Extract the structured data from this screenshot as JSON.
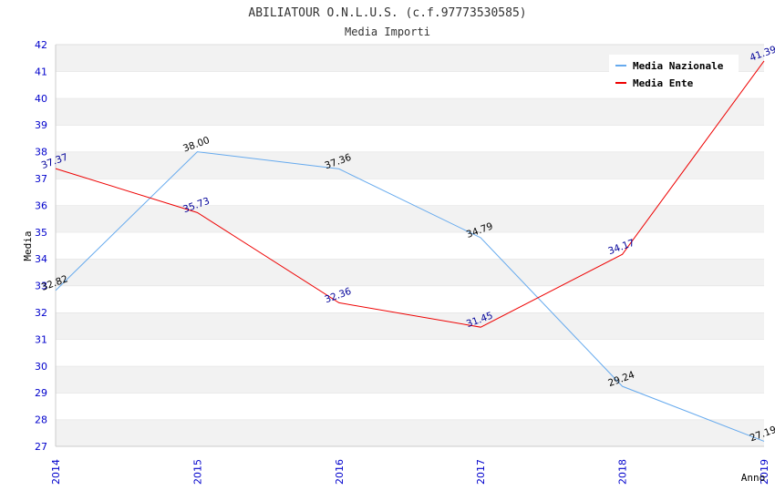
{
  "chart_data": {
    "type": "line",
    "title": "ABILIATOUR O.N.L.U.S. (c.f.97773530585)",
    "subtitle": "Media Importi",
    "xlabel": "Anno",
    "ylabel": "Media",
    "ylim": [
      27,
      42
    ],
    "yticks": [
      "27",
      "28",
      "29",
      "30",
      "31",
      "32",
      "33",
      "34",
      "35",
      "36",
      "37",
      "38",
      "39",
      "40",
      "41",
      "42"
    ],
    "categories": [
      "2014",
      "2015",
      "2016",
      "2017",
      "2018",
      "2019"
    ],
    "grid": "horizontal alternating bands",
    "legend_position": "top-right",
    "series": [
      {
        "name": "Media Nazionale",
        "color": "#66aaee",
        "label_color": "#000000",
        "values": [
          32.82,
          38.0,
          37.36,
          34.79,
          29.24,
          27.19
        ],
        "labels": [
          "32.82",
          "38.00",
          "37.36",
          "34.79",
          "29.24",
          "27.19"
        ]
      },
      {
        "name": "Media Ente",
        "color": "#ee0000",
        "label_color": "#000099",
        "values": [
          37.37,
          35.73,
          32.36,
          31.45,
          34.17,
          41.39
        ],
        "labels": [
          "37.37",
          "35.73",
          "32.36",
          "31.45",
          "34.17",
          "41.39"
        ]
      }
    ]
  }
}
